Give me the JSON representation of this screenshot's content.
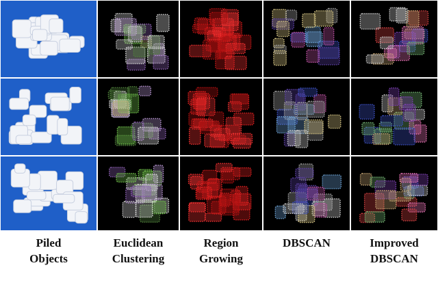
{
  "columns": [
    {
      "lines": [
        "Piled",
        "Objects"
      ]
    },
    {
      "lines": [
        "Euclidean",
        "Clustering"
      ]
    },
    {
      "lines": [
        "Region",
        "Growing"
      ]
    },
    {
      "lines": [
        "DBSCAN"
      ]
    },
    {
      "lines": [
        "Improved",
        "DBSCAN"
      ]
    }
  ]
}
